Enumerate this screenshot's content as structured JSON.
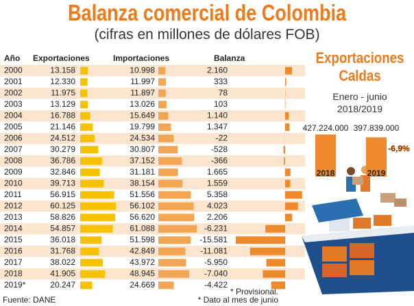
{
  "title": "Balanza comercial de Colombia",
  "subtitle": "(cifras en millones de dólares FOB)",
  "chart_data": [
    {
      "type": "table-bar",
      "category_label": "Año",
      "categories": [
        "2000",
        "2001",
        "2002",
        "2003",
        "2004",
        "2005",
        "2006",
        "2007",
        "2008",
        "2009",
        "2010",
        "2011",
        "2012",
        "2013",
        "2014",
        "2015",
        "2016",
        "2017",
        "2018",
        "2019*"
      ],
      "series": [
        {
          "name": "Exportaciones",
          "color": "#f6c200",
          "values": [
            13158,
            12330,
            11975,
            13129,
            16788,
            21146,
            24512,
            30279,
            36786,
            32846,
            39713,
            56915,
            60125,
            58826,
            54857,
            36018,
            31768,
            38022,
            41905,
            20247
          ],
          "value_labels": [
            "13.158",
            "12.330",
            "11.975",
            "13.129",
            "16.788",
            "21.146",
            "24.512",
            "30.279",
            "36.786",
            "32.846",
            "39.713",
            "56.915",
            "60.125",
            "58.826",
            "54.857",
            "36.018",
            "31.768",
            "38.022",
            "41.905",
            "20.247"
          ]
        },
        {
          "name": "Importaciones",
          "color": "#f2a553",
          "values": [
            10998,
            11997,
            11897,
            13026,
            15649,
            19799,
            24534,
            30807,
            37152,
            31181,
            38154,
            51556,
            56102,
            56620,
            61088,
            51598,
            42849,
            43972,
            48945,
            24669
          ],
          "value_labels": [
            "10.998",
            "11.997",
            "11.897",
            "13.026",
            "15.649",
            "19.799",
            "24.534",
            "30.807",
            "37.152",
            "31.181",
            "38.154",
            "51.556",
            "56.102",
            "56.620",
            "61.088",
            "51.598",
            "42.849",
            "43.972",
            "48.945",
            "24.669"
          ]
        },
        {
          "name": "Balanza",
          "color": "#ee8a2b",
          "values": [
            2160,
            333,
            78,
            103,
            1140,
            1347,
            -22,
            -528,
            -366,
            1665,
            1559,
            5358,
            4023,
            2206,
            -6231,
            -15581,
            -11081,
            -5950,
            -7040,
            -4422
          ],
          "value_labels": [
            "2.160",
            "333",
            "78",
            "103",
            "1.140",
            "1.347",
            "-22",
            "-528",
            "-366",
            "1.665",
            "1.559",
            "5.358",
            "4.023",
            "2.206",
            "-6.231",
            "-15.581",
            "-11.081",
            "-5.950",
            "-7.040",
            "-4.422"
          ]
        }
      ]
    },
    {
      "type": "bar",
      "title": "Exportaciones Caldas",
      "subtitle": "Enero - junio 2018/2019",
      "categories": [
        "2018",
        "2019"
      ],
      "values": [
        427224000,
        397839000
      ],
      "value_labels": [
        "427.224.000",
        "397.839.000"
      ],
      "color": "#ee8a2b",
      "annotation": "-6,9%"
    }
  ],
  "source": "Fuente: DANE",
  "footnotes": [
    "* Provisional.",
    "* Dato al mes de junio"
  ]
}
